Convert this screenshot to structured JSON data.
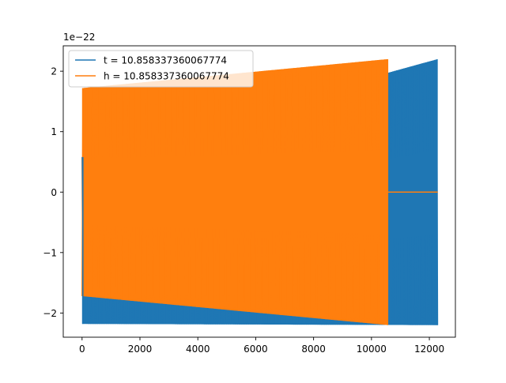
{
  "chart_data": {
    "type": "line",
    "title": "",
    "xlabel": "",
    "ylabel": "",
    "y_offset_label": "1e−22",
    "xlim": [
      -650,
      12900
    ],
    "ylim": [
      -2.4,
      2.42
    ],
    "xticks": [
      0,
      2000,
      4000,
      6000,
      8000,
      10000,
      12000
    ],
    "xtick_labels": [
      "0",
      "2000",
      "4000",
      "6000",
      "8000",
      "10000",
      "12000"
    ],
    "yticks": [
      -2,
      -1,
      0,
      1,
      2
    ],
    "ytick_labels": [
      "−2",
      "−1",
      "0",
      "1",
      "2"
    ],
    "grid": false,
    "legend_position": "top-left",
    "series": [
      {
        "name": "t = 10.858337360067774",
        "color": "#1f77b4",
        "oscillation": {
          "x_start": 0,
          "x_end": 12290,
          "y_lower_start": -2.18,
          "y_lower_end": -2.2,
          "y_upper_start": 0.58,
          "y_upper_end": 2.2
        }
      },
      {
        "name": "h = 10.858337360067774",
        "color": "#ff7f0e",
        "oscillation": {
          "x_start": 0,
          "x_end": 10580,
          "y_lower_start": -1.72,
          "y_lower_end": -2.2,
          "y_upper_start": 1.72,
          "y_upper_end": 2.2
        },
        "flat": {
          "x_start": 10580,
          "x_end": 12290,
          "y": 0
        }
      }
    ]
  }
}
